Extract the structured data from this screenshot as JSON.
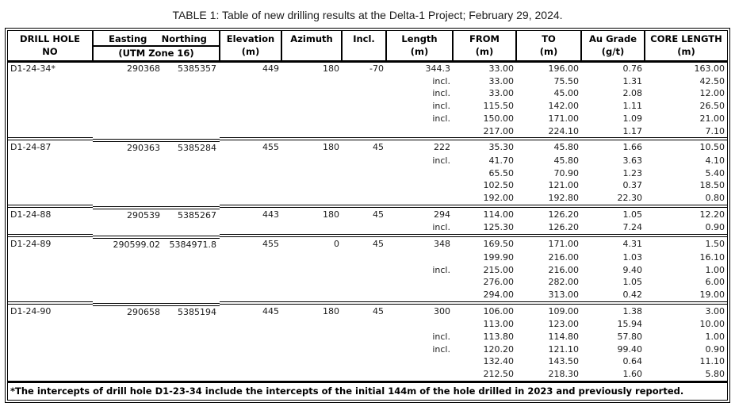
{
  "title": "TABLE 1: Table of new drilling results at the Delta-1 Project; February 29, 2024.",
  "columns": [
    {
      "line1": "DRILL HOLE",
      "line2": "NO"
    },
    {
      "line1": "Easting",
      "line1b": "Northing",
      "line2": "(UTM Zone 16)"
    },
    {
      "line1": "Elevation",
      "line2": "(m)"
    },
    {
      "line1": "Azimuth",
      "line2": ""
    },
    {
      "line1": "Incl.",
      "line2": ""
    },
    {
      "line1": "Length",
      "line2": "(m)"
    },
    {
      "line1": "FROM",
      "line2": "(m)"
    },
    {
      "line1": "TO",
      "line2": "(m)"
    },
    {
      "line1": "Au Grade",
      "line2": "(g/t)"
    },
    {
      "line1": "CORE LENGTH",
      "line2": "(m)"
    }
  ],
  "blocks": [
    {
      "hole": "D1-24-34*",
      "easting": "290368",
      "northing": "5385357",
      "elevation": "449",
      "azimuth": "180",
      "incl": "-70",
      "length": "344.3",
      "intercepts": [
        {
          "qualifier": "",
          "from": "33.00",
          "to": "196.00",
          "grade": "0.76",
          "core": "163.00"
        },
        {
          "qualifier": "incl.",
          "from": "33.00",
          "to": "75.50",
          "grade": "1.31",
          "core": "42.50"
        },
        {
          "qualifier": "incl.",
          "from": "33.00",
          "to": "45.00",
          "grade": "2.08",
          "core": "12.00"
        },
        {
          "qualifier": "incl.",
          "from": "115.50",
          "to": "142.00",
          "grade": "1.11",
          "core": "26.50"
        },
        {
          "qualifier": "incl.",
          "from": "150.00",
          "to": "171.00",
          "grade": "1.09",
          "core": "21.00"
        },
        {
          "qualifier": "",
          "from": "217.00",
          "to": "224.10",
          "grade": "1.17",
          "core": "7.10"
        }
      ]
    },
    {
      "hole": "D1-24-87",
      "easting": "290363",
      "northing": "5385284",
      "elevation": "455",
      "azimuth": "180",
      "incl": "45",
      "length": "222",
      "intercepts": [
        {
          "qualifier": "",
          "from": "35.30",
          "to": "45.80",
          "grade": "1.66",
          "core": "10.50"
        },
        {
          "qualifier": "incl.",
          "from": "41.70",
          "to": "45.80",
          "grade": "3.63",
          "core": "4.10"
        },
        {
          "qualifier": "",
          "from": "65.50",
          "to": "70.90",
          "grade": "1.23",
          "core": "5.40"
        },
        {
          "qualifier": "",
          "from": "102.50",
          "to": "121.00",
          "grade": "0.37",
          "core": "18.50"
        },
        {
          "qualifier": "",
          "from": "192.00",
          "to": "192.80",
          "grade": "22.30",
          "core": "0.80"
        }
      ]
    },
    {
      "hole": "D1-24-88",
      "easting": "290539",
      "northing": "5385267",
      "elevation": "443",
      "azimuth": "180",
      "incl": "45",
      "length": "294",
      "intercepts": [
        {
          "qualifier": "",
          "from": "114.00",
          "to": "126.20",
          "grade": "1.05",
          "core": "12.20"
        },
        {
          "qualifier": "incl.",
          "from": "125.30",
          "to": "126.20",
          "grade": "7.24",
          "core": "0.90"
        }
      ]
    },
    {
      "hole": "D1-24-89",
      "easting": "290599.02",
      "northing": "5384971.8",
      "elevation": "455",
      "azimuth": "0",
      "incl": "45",
      "length": "348",
      "intercepts": [
        {
          "qualifier": "",
          "from": "169.50",
          "to": "171.00",
          "grade": "4.31",
          "core": "1.50"
        },
        {
          "qualifier": "",
          "from": "199.90",
          "to": "216.00",
          "grade": "1.03",
          "core": "16.10"
        },
        {
          "qualifier": "incl.",
          "from": "215.00",
          "to": "216.00",
          "grade": "9.40",
          "core": "1.00"
        },
        {
          "qualifier": "",
          "from": "276.00",
          "to": "282.00",
          "grade": "1.05",
          "core": "6.00"
        },
        {
          "qualifier": "",
          "from": "294.00",
          "to": "313.00",
          "grade": "0.42",
          "core": "19.00"
        }
      ]
    },
    {
      "hole": "D1-24-90",
      "easting": "290658",
      "northing": "5385194",
      "elevation": "445",
      "azimuth": "180",
      "incl": "45",
      "length": "300",
      "intercepts": [
        {
          "qualifier": "",
          "from": "106.00",
          "to": "109.00",
          "grade": "1.38",
          "core": "3.00"
        },
        {
          "qualifier": "",
          "from": "113.00",
          "to": "123.00",
          "grade": "15.94",
          "core": "10.00"
        },
        {
          "qualifier": "incl.",
          "from": "113.80",
          "to": "114.80",
          "grade": "57.80",
          "core": "1.00"
        },
        {
          "qualifier": "incl.",
          "from": "120.20",
          "to": "121.10",
          "grade": "99.40",
          "core": "0.90"
        },
        {
          "qualifier": "",
          "from": "132.40",
          "to": "143.50",
          "grade": "0.64",
          "core": "11.10"
        },
        {
          "qualifier": "",
          "from": "212.50",
          "to": "218.30",
          "grade": "1.60",
          "core": "5.80"
        }
      ]
    }
  ],
  "footnote": "*The intercepts of drill hole D1-23-34 include the intercepts of the initial 144m of the hole drilled in 2023 and previously reported."
}
